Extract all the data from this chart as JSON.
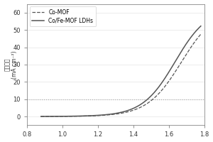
{
  "title": "",
  "xlabel": "",
  "ylabel": "(mA cm⁻²)",
  "ylabel2": "电流密度",
  "xlim": [
    0.8,
    1.8
  ],
  "ylim": [
    -5,
    65
  ],
  "yticks": [
    0,
    10,
    20,
    30,
    40,
    50,
    60
  ],
  "xticks": [
    0.8,
    1.0,
    1.2,
    1.4,
    1.6,
    1.8
  ],
  "hline_y": 10,
  "hline_color": "#aaaaaa",
  "comof_color": "#555555",
  "ldh_color": "#555555",
  "background": "#ffffff",
  "legend_labels": [
    "Co-MOF",
    "Co/Fe-MOF LDHs"
  ]
}
